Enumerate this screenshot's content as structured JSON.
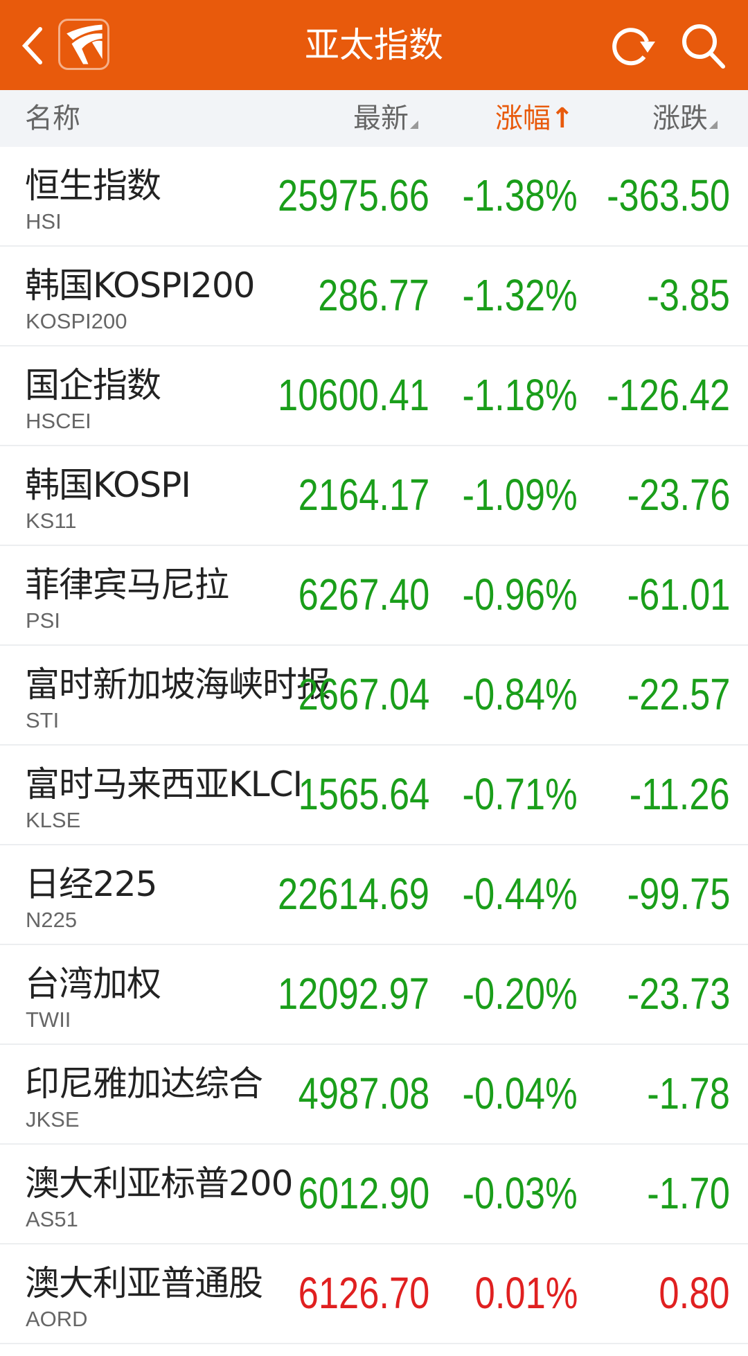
{
  "header": {
    "title": "亚太指数",
    "back_icon": "chevron-left-icon",
    "logo_icon": "app-logo-icon",
    "refresh_icon": "refresh-icon",
    "search_icon": "search-icon",
    "bg_color": "#e85a0c"
  },
  "columns": {
    "name": "名称",
    "latest": "最新",
    "pct": "涨幅",
    "pct_sort": "↑",
    "change": "涨跌"
  },
  "colors": {
    "down": "#1a9e1a",
    "up": "#e02020",
    "active_sort": "#e85a0c"
  },
  "rows": [
    {
      "name": "恒生指数",
      "code": "HSI",
      "latest": "25975.66",
      "pct": "-1.38%",
      "change": "-363.50",
      "dir": "down"
    },
    {
      "name": "韩国KOSPI200",
      "code": "KOSPI200",
      "latest": "286.77",
      "pct": "-1.32%",
      "change": "-3.85",
      "dir": "down"
    },
    {
      "name": "国企指数",
      "code": "HSCEI",
      "latest": "10600.41",
      "pct": "-1.18%",
      "change": "-126.42",
      "dir": "down"
    },
    {
      "name": "韩国KOSPI",
      "code": "KS11",
      "latest": "2164.17",
      "pct": "-1.09%",
      "change": "-23.76",
      "dir": "down"
    },
    {
      "name": "菲律宾马尼拉",
      "code": "PSI",
      "latest": "6267.40",
      "pct": "-0.96%",
      "change": "-61.01",
      "dir": "down"
    },
    {
      "name": "富时新加坡海峡时报",
      "code": "STI",
      "latest": "2667.04",
      "pct": "-0.84%",
      "change": "-22.57",
      "dir": "down"
    },
    {
      "name": "富时马来西亚KLCI",
      "code": "KLSE",
      "latest": "1565.64",
      "pct": "-0.71%",
      "change": "-11.26",
      "dir": "down"
    },
    {
      "name": "日经225",
      "code": "N225",
      "latest": "22614.69",
      "pct": "-0.44%",
      "change": "-99.75",
      "dir": "down"
    },
    {
      "name": "台湾加权",
      "code": "TWII",
      "latest": "12092.97",
      "pct": "-0.20%",
      "change": "-23.73",
      "dir": "down"
    },
    {
      "name": "印尼雅加达综合",
      "code": "JKSE",
      "latest": "4987.08",
      "pct": "-0.04%",
      "change": "-1.78",
      "dir": "down"
    },
    {
      "name": "澳大利亚标普200",
      "code": "AS51",
      "latest": "6012.90",
      "pct": "-0.03%",
      "change": "-1.70",
      "dir": "down"
    },
    {
      "name": "澳大利亚普通股",
      "code": "AORD",
      "latest": "6126.70",
      "pct": "0.01%",
      "change": "0.80",
      "dir": "up"
    }
  ]
}
